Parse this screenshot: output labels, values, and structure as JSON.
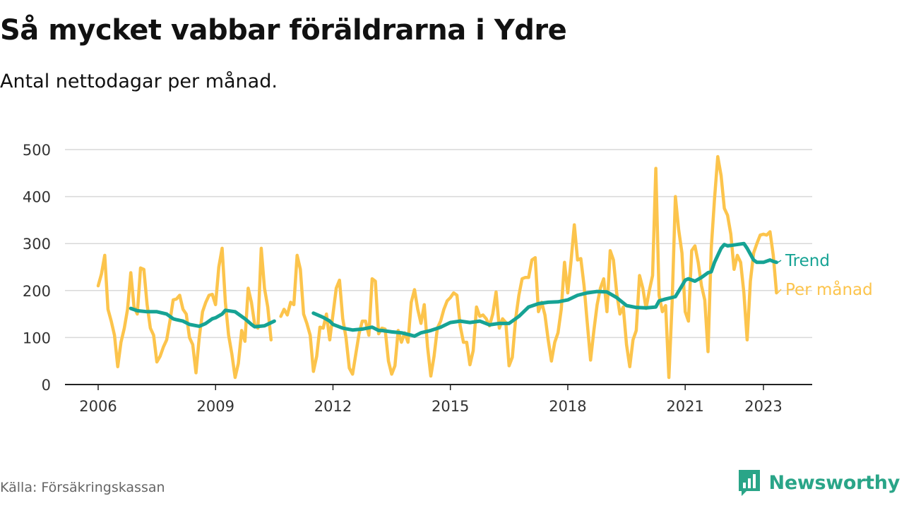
{
  "title": "Så mycket vabbar föräldrarna i Ydre",
  "subtitle": "Antal nettodagar per månad.",
  "source": "Källa: Försäkringskassan",
  "brand": "Newsworthy",
  "colors": {
    "trend": "#16a394",
    "monthly": "#fcc44c",
    "grid": "#d9d9d9",
    "axis": "#222222",
    "brand": "#2aa588"
  },
  "chart_data": {
    "type": "line",
    "title": "Så mycket vabbar föräldrarna i Ydre",
    "ylabel": "",
    "xlabel": "",
    "xlim": [
      2006,
      2024.1
    ],
    "ylim": [
      0,
      500
    ],
    "y_ticks": [
      0,
      100,
      200,
      300,
      400,
      500
    ],
    "x_ticks": [
      2006,
      2009,
      2012,
      2015,
      2018,
      2021,
      2023
    ],
    "x_tick_labels": [
      "2006",
      "2009",
      "2012",
      "2015",
      "2018",
      "2021",
      "2023"
    ],
    "grid": true,
    "series": [
      {
        "name": "Per månad",
        "color": "#fcc44c",
        "x": [
          2006.0,
          2006.083,
          2006.167,
          2006.25,
          2006.333,
          2006.417,
          2006.5,
          2006.583,
          2006.667,
          2006.75,
          2006.833,
          2006.917,
          2007.0,
          2007.083,
          2007.167,
          2007.25,
          2007.333,
          2007.417,
          2007.5,
          2007.583,
          2007.667,
          2007.75,
          2007.833,
          2007.917,
          2008.0,
          2008.083,
          2008.167,
          2008.25,
          2008.333,
          2008.417,
          2008.5,
          2008.583,
          2008.667,
          2008.75,
          2008.833,
          2008.917,
          2009.0,
          2009.083,
          2009.167,
          2009.25,
          2009.333,
          2009.417,
          2009.5,
          2009.583,
          2009.667,
          2009.75,
          2009.833,
          2009.917,
          2010.0,
          2010.083,
          2010.167,
          2010.25,
          2010.333,
          2010.417,
          2010.5,
          null,
          2010.667,
          2010.75,
          2010.833,
          2010.917,
          2011.0,
          2011.083,
          2011.167,
          2011.25,
          2011.333,
          2011.417,
          2011.5,
          2011.583,
          2011.667,
          2011.75,
          2011.833,
          2011.917,
          2012.0,
          2012.083,
          2012.167,
          2012.25,
          2012.333,
          2012.417,
          2012.5,
          2012.583,
          2012.667,
          2012.75,
          2012.833,
          2012.917,
          2013.0,
          2013.083,
          2013.167,
          2013.25,
          2013.333,
          2013.417,
          2013.5,
          2013.583,
          2013.667,
          2013.75,
          2013.833,
          2013.917,
          2014.0,
          2014.083,
          2014.167,
          2014.25,
          2014.333,
          2014.417,
          2014.5,
          2014.583,
          2014.667,
          2014.75,
          2014.833,
          2014.917,
          2015.0,
          2015.083,
          2015.167,
          2015.25,
          2015.333,
          2015.417,
          2015.5,
          2015.583,
          2015.667,
          2015.75,
          2015.833,
          2015.917,
          2016.0,
          2016.083,
          2016.167,
          2016.25,
          2016.333,
          2016.417,
          2016.5,
          2016.583,
          2016.667,
          2016.75,
          2016.833,
          2016.917,
          2017.0,
          2017.083,
          2017.167,
          2017.25,
          2017.333,
          2017.417,
          2017.5,
          2017.583,
          2017.667,
          2017.75,
          2017.833,
          2017.917,
          2018.0,
          2018.083,
          2018.167,
          2018.25,
          2018.333,
          2018.417,
          2018.5,
          2018.583,
          2018.667,
          2018.75,
          2018.833,
          2018.917,
          2019.0,
          2019.083,
          2019.167,
          2019.25,
          2019.333,
          2019.417,
          2019.5,
          2019.583,
          2019.667,
          2019.75,
          2019.833,
          2019.917,
          2020.0,
          2020.083,
          2020.167,
          2020.25,
          2020.333,
          2020.417,
          2020.5,
          2020.583,
          2020.667,
          2020.75,
          2020.833,
          2020.917,
          2021.0,
          2021.083,
          2021.167,
          2021.25,
          2021.333,
          2021.417,
          2021.5,
          2021.583,
          2021.667,
          2021.75,
          2021.833,
          2021.917,
          2022.0,
          2022.083,
          2022.167,
          2022.25,
          2022.333,
          2022.417,
          2022.5,
          2022.583,
          2022.667,
          2022.75,
          2022.833,
          2022.917,
          2023.0,
          2023.083,
          2023.167,
          2023.25,
          2023.333
        ],
        "y": [
          210,
          235,
          275,
          160,
          135,
          105,
          38,
          90,
          120,
          160,
          238,
          165,
          150,
          248,
          245,
          170,
          120,
          105,
          48,
          60,
          80,
          95,
          135,
          180,
          182,
          190,
          160,
          150,
          100,
          85,
          25,
          100,
          155,
          175,
          190,
          192,
          170,
          250,
          290,
          175,
          105,
          65,
          15,
          45,
          115,
          92,
          205,
          175,
          128,
          120,
          290,
          205,
          165,
          95,
          null,
          85,
          145,
          160,
          148,
          175,
          170,
          275,
          245,
          150,
          130,
          105,
          28,
          60,
          122,
          120,
          150,
          95,
          150,
          205,
          222,
          140,
          100,
          35,
          22,
          65,
          108,
          135,
          135,
          105,
          225,
          220,
          108,
          120,
          118,
          50,
          22,
          40,
          115,
          90,
          110,
          90,
          175,
          202,
          160,
          130,
          170,
          80,
          18,
          60,
          120,
          135,
          160,
          178,
          185,
          195,
          190,
          125,
          90,
          90,
          42,
          72,
          165,
          145,
          148,
          140,
          125,
          150,
          197,
          120,
          140,
          132,
          40,
          58,
          140,
          190,
          225,
          228,
          228,
          265,
          270,
          155,
          175,
          148,
          95,
          50,
          90,
          110,
          160,
          260,
          195,
          262,
          340,
          265,
          268,
          210,
          130,
          52,
          115,
          170,
          205,
          225,
          155,
          285,
          265,
          195,
          150,
          165,
          85,
          38,
          95,
          115,
          232,
          205,
          162,
          200,
          232,
          460,
          190,
          155,
          168,
          15,
          175,
          400,
          330,
          280,
          155,
          135,
          285,
          295,
          260,
          210,
          180,
          70,
          290,
          395,
          485,
          445,
          375,
          360,
          320,
          245,
          275,
          260,
          195,
          95,
          220,
          280,
          300,
          318,
          320,
          318,
          325,
          275,
          195
        ]
      },
      {
        "name": "Trend",
        "color": "#16a394",
        "x": [
          2006.833,
          2007.0,
          2007.25,
          2007.5,
          2007.75,
          2007.917,
          2008.0,
          2008.167,
          2008.333,
          2008.583,
          2008.75,
          2008.917,
          2009.0,
          2009.167,
          2009.25,
          2009.5,
          2009.75,
          2009.917,
          2010.0,
          2010.25,
          2010.5,
          null,
          2011.5,
          2011.75,
          2011.917,
          2012.0,
          2012.25,
          2012.5,
          2012.75,
          2013.0,
          2013.167,
          2013.25,
          2013.5,
          2013.75,
          2014.0,
          2014.083,
          2014.25,
          2014.5,
          2014.75,
          2015.0,
          2015.25,
          2015.5,
          2015.75,
          2016.0,
          2016.25,
          2016.5,
          2016.75,
          2017.0,
          2017.25,
          2017.5,
          2017.75,
          2018.0,
          2018.25,
          2018.5,
          2018.75,
          2019.0,
          2019.25,
          2019.5,
          2019.75,
          2020.0,
          2020.25,
          2020.333,
          2020.5,
          2020.75,
          2020.917,
          2021.0,
          2021.083,
          2021.25,
          2021.417,
          2021.583,
          2021.667,
          2021.75,
          2021.917,
          2022.0,
          2022.083,
          2022.25,
          2022.5,
          2022.583,
          2022.75,
          2022.833,
          2023.0,
          2023.167,
          2023.25,
          2023.333
        ],
        "y": [
          162,
          157,
          155,
          155,
          150,
          140,
          138,
          135,
          128,
          124,
          130,
          140,
          142,
          150,
          158,
          155,
          140,
          128,
          123,
          125,
          135,
          null,
          152,
          143,
          135,
          128,
          120,
          116,
          118,
          122,
          115,
          115,
          112,
          110,
          105,
          103,
          110,
          115,
          122,
          132,
          135,
          132,
          135,
          127,
          130,
          130,
          145,
          165,
          172,
          175,
          176,
          180,
          190,
          195,
          198,
          197,
          185,
          168,
          164,
          163,
          165,
          178,
          182,
          187,
          210,
          222,
          225,
          220,
          228,
          238,
          240,
          260,
          290,
          298,
          295,
          297,
          300,
          290,
          265,
          260,
          260,
          265,
          262,
          260
        ]
      }
    ],
    "end_labels": [
      "Trend",
      "Per månad"
    ]
  }
}
